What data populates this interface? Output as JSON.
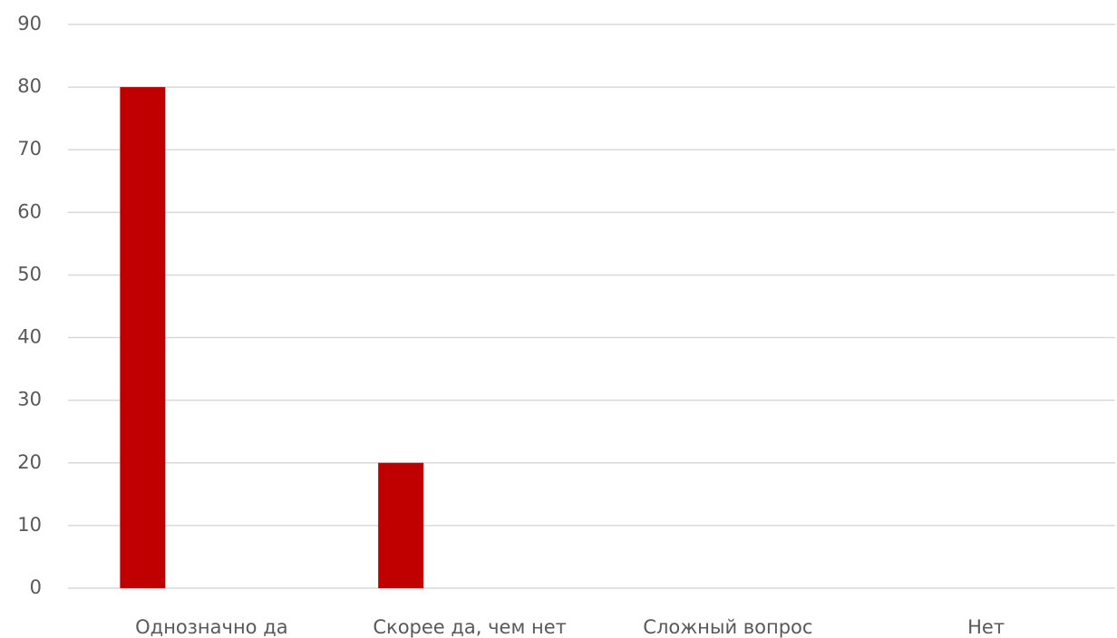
{
  "chart_data": {
    "type": "bar",
    "categories": [
      "Однозначно да",
      "Скорее да, чем нет",
      "Сложный вопрос",
      "Нет"
    ],
    "values": [
      80,
      20,
      0,
      0
    ],
    "color": "#c00000",
    "ylim": [
      0,
      90
    ],
    "yticks": [
      0,
      10,
      20,
      30,
      40,
      50,
      60,
      70,
      80,
      90
    ],
    "grid": true
  }
}
